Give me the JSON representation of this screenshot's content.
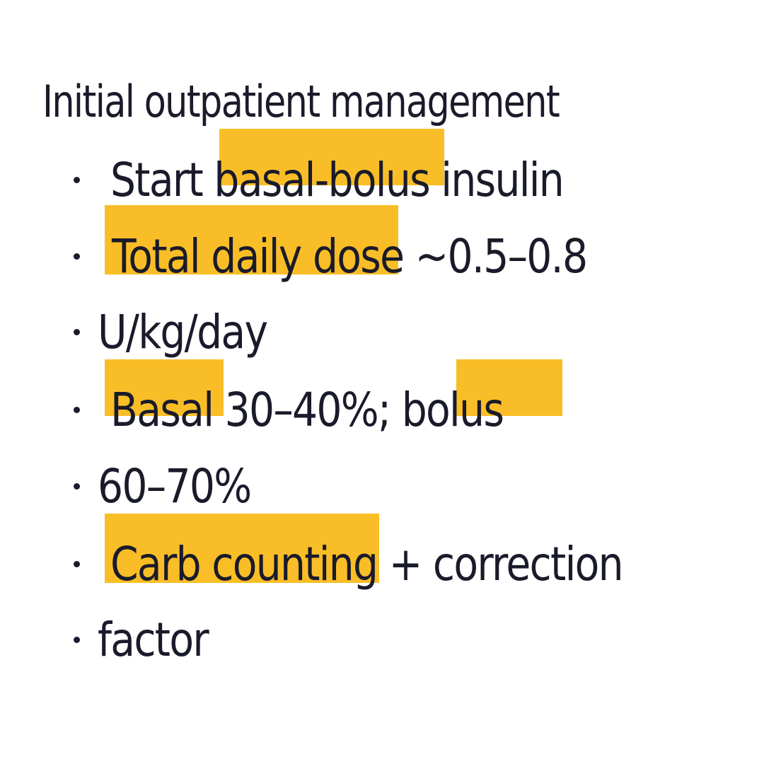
{
  "title": "Initial outpatient management",
  "bullets": [
    {
      "parts": [
        "Start ",
        "basal-bolus",
        " insulin"
      ]
    },
    {
      "parts": [
        "Total daily dose",
        " ~0.5–0.8"
      ]
    },
    {
      "parts": [
        "U/kg/day"
      ]
    },
    {
      "parts": [
        "Basal",
        " 30–40%; ",
        "bolus"
      ]
    },
    {
      "parts": [
        "60–70%"
      ]
    },
    {
      "parts": [
        "Carb counting",
        " + correction"
      ]
    },
    {
      "parts": [
        "factor"
      ]
    }
  ],
  "colors": {
    "highlight": "#f9be27",
    "ink": "#1a1b2a",
    "background": "#ffffff"
  }
}
